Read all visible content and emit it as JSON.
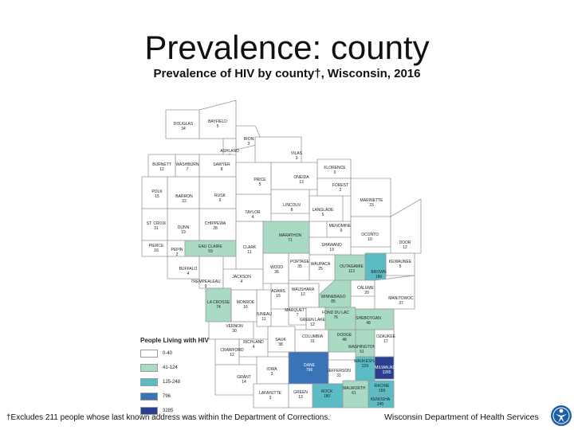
{
  "title": "Prevalence: county",
  "subtitle": "Prevalence of HIV by county†, Wisconsin, 2016",
  "legend": {
    "title": "People Living with HIV",
    "items": [
      {
        "label": "0-40",
        "color": "#ffffff"
      },
      {
        "label": "41-124",
        "color": "#a9dbc4"
      },
      {
        "label": "125-248",
        "color": "#5bbcc6"
      },
      {
        "label": "796",
        "color": "#3a74b8"
      },
      {
        "label": "3285",
        "color": "#2a3f8f"
      }
    ]
  },
  "counties": [
    {
      "name": "DOUGLAS",
      "value": "34"
    },
    {
      "name": "BAYFIELD",
      "value": "5"
    },
    {
      "name": "IRON",
      "value": "3"
    },
    {
      "name": "ASHLAND",
      "value": "8"
    },
    {
      "name": "VILAS",
      "value": "3"
    },
    {
      "name": "BURNETT",
      "value": "12"
    },
    {
      "name": "WASHBURN",
      "value": "7"
    },
    {
      "name": "SAWYER",
      "value": "8"
    },
    {
      "name": "FLORENCE",
      "value": "0"
    },
    {
      "name": "ONEIDA",
      "value": "13"
    },
    {
      "name": "PRICE",
      "value": "5"
    },
    {
      "name": "FOREST",
      "value": "2"
    },
    {
      "name": "POLK",
      "value": "15"
    },
    {
      "name": "BARRON",
      "value": "22"
    },
    {
      "name": "RUSK",
      "value": "6"
    },
    {
      "name": "MARINETTE",
      "value": "23"
    },
    {
      "name": "LINCOLN",
      "value": "8"
    },
    {
      "name": "LANGLADE",
      "value": "5"
    },
    {
      "name": "TAYLOR",
      "value": "4"
    },
    {
      "name": "ST. CROIX",
      "value": "31"
    },
    {
      "name": "DUNN",
      "value": "19"
    },
    {
      "name": "CHIPPEWA",
      "value": "28"
    },
    {
      "name": "MENOMINEE",
      "value": "6"
    },
    {
      "name": "OCONTO",
      "value": "10"
    },
    {
      "name": "DOOR",
      "value": "12"
    },
    {
      "name": "MARATHON",
      "value": "71"
    },
    {
      "name": "PIERCE",
      "value": "16"
    },
    {
      "name": "PEPIN",
      "value": "2"
    },
    {
      "name": "EAU CLAIRE",
      "value": "59"
    },
    {
      "name": "CLARK",
      "value": "11"
    },
    {
      "name": "SHAWANO",
      "value": "19"
    },
    {
      "name": "KEWAUNEE",
      "value": "5"
    },
    {
      "name": "BROWN",
      "value": "186"
    },
    {
      "name": "OUTAGAMIE",
      "value": "113"
    },
    {
      "name": "WAUPACA",
      "value": "25"
    },
    {
      "name": "PORTAGE",
      "value": "35"
    },
    {
      "name": "WOOD",
      "value": "36"
    },
    {
      "name": "BUFFALO",
      "value": "4"
    },
    {
      "name": "TREMPEALEAU",
      "value": "9"
    },
    {
      "name": "JACKSON",
      "value": "4"
    },
    {
      "name": "CALUMET",
      "value": "20"
    },
    {
      "name": "MANITOWOC",
      "value": "37"
    },
    {
      "name": "WINNEBAGO",
      "value": "85"
    },
    {
      "name": "WAUSHARA",
      "value": "12"
    },
    {
      "name": "ADAMS",
      "value": "15"
    },
    {
      "name": "JUNEAU",
      "value": "11"
    },
    {
      "name": "MONROE",
      "value": "16"
    },
    {
      "name": "LA CROSSE",
      "value": "74"
    },
    {
      "name": "MARQUETTE",
      "value": "7"
    },
    {
      "name": "GREEN LAKE",
      "value": "12"
    },
    {
      "name": "FOND DU LAC",
      "value": "76"
    },
    {
      "name": "SHEBOYGAN",
      "value": "48"
    },
    {
      "name": "VERNON",
      "value": "30"
    },
    {
      "name": "RICHLAND",
      "value": "4"
    },
    {
      "name": "SAUK",
      "value": "38"
    },
    {
      "name": "COLUMBIA",
      "value": "31"
    },
    {
      "name": "DODGE",
      "value": "48"
    },
    {
      "name": "WASHINGTON",
      "value": "51"
    },
    {
      "name": "OZAUKEE",
      "value": "17"
    },
    {
      "name": "CRAWFORD",
      "value": "12"
    },
    {
      "name": "DANE",
      "value": "796"
    },
    {
      "name": "JEFFERSON",
      "value": "31"
    },
    {
      "name": "WAUKESHA",
      "value": "229"
    },
    {
      "name": "MILWAUKEE",
      "value": "3285"
    },
    {
      "name": "IOWA",
      "value": "3"
    },
    {
      "name": "GRANT",
      "value": "14"
    },
    {
      "name": "LAFAYETTE",
      "value": "3"
    },
    {
      "name": "GREEN",
      "value": "13"
    },
    {
      "name": "ROCK",
      "value": "180"
    },
    {
      "name": "WALWORTH",
      "value": "61"
    },
    {
      "name": "RACINE",
      "value": "159"
    },
    {
      "name": "KENOSHA",
      "value": "245"
    }
  ],
  "footnote": "†Excludes 211 people whose last known address was within the Department of Corrections.",
  "agency": "Wisconsin Department of Health Services"
}
